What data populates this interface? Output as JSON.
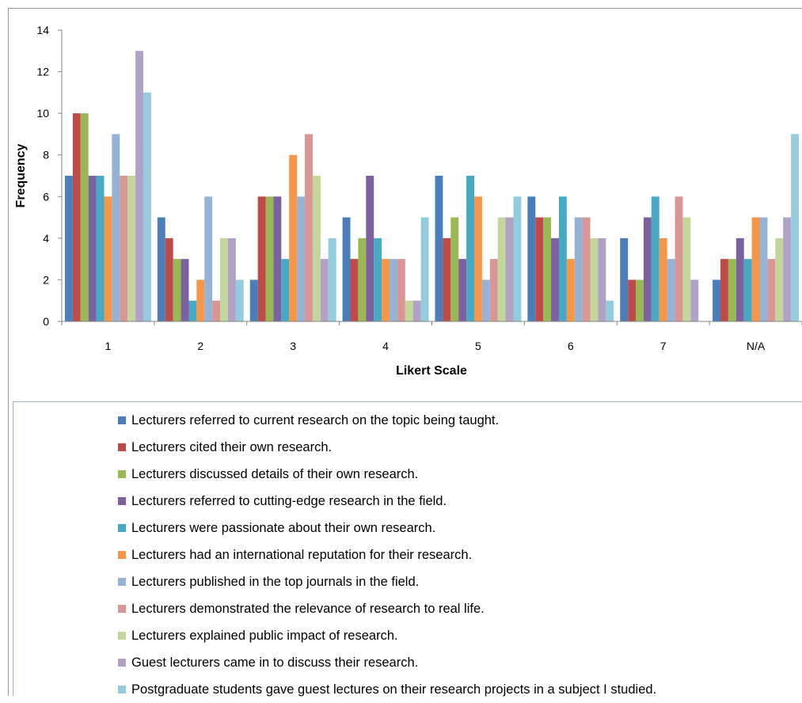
{
  "chart_data": {
    "type": "bar",
    "title": "",
    "xlabel": "Likert Scale",
    "ylabel": "Frequency",
    "ylim": [
      0,
      14
    ],
    "yticks": [
      0,
      2,
      4,
      6,
      8,
      10,
      12,
      14
    ],
    "grid": false,
    "legend_position": "bottom",
    "categories": [
      "1",
      "2",
      "3",
      "4",
      "5",
      "6",
      "7",
      "N/A"
    ],
    "series": [
      {
        "name": "Lecturers referred to current research on the topic being taught.",
        "color": "#4a7ebb",
        "values": [
          7,
          5,
          2,
          5,
          7,
          6,
          4,
          2
        ]
      },
      {
        "name": "Lecturers cited their own research.",
        "color": "#be4b48",
        "values": [
          10,
          4,
          6,
          3,
          4,
          5,
          2,
          3
        ]
      },
      {
        "name": "Lecturers discussed details of their own research.",
        "color": "#98b954",
        "values": [
          10,
          3,
          6,
          4,
          5,
          5,
          2,
          3
        ]
      },
      {
        "name": "Lecturers referred to cutting-edge research in the field.",
        "color": "#7d60a0",
        "values": [
          7,
          3,
          6,
          7,
          3,
          4,
          5,
          4
        ]
      },
      {
        "name": "Lecturers were passionate about their own research.",
        "color": "#46aac5",
        "values": [
          7,
          1,
          3,
          4,
          7,
          6,
          6,
          3
        ]
      },
      {
        "name": "Lecturers had an international reputation for their research.",
        "color": "#f79646",
        "values": [
          6,
          2,
          8,
          3,
          6,
          3,
          4,
          5
        ]
      },
      {
        "name": "Lecturers published in the top journals in the field.",
        "color": "#95b3d7",
        "values": [
          9,
          6,
          6,
          3,
          2,
          5,
          3,
          5
        ]
      },
      {
        "name": "Lecturers demonstrated the relevance of research to real life.",
        "color": "#d99694",
        "values": [
          7,
          1,
          9,
          3,
          3,
          5,
          6,
          3
        ]
      },
      {
        "name": "Lecturers explained public impact of research.",
        "color": "#c3d69b",
        "values": [
          7,
          4,
          7,
          1,
          5,
          4,
          5,
          4
        ]
      },
      {
        "name": "Guest lecturers came in to discuss their research.",
        "color": "#b2a1c7",
        "values": [
          13,
          4,
          3,
          1,
          5,
          4,
          2,
          5
        ]
      },
      {
        "name": "Postgraduate students gave guest lectures on their research projects in a subject I studied.",
        "color": "#93cddd",
        "values": [
          11,
          2,
          4,
          5,
          6,
          1,
          0,
          9
        ]
      }
    ]
  }
}
